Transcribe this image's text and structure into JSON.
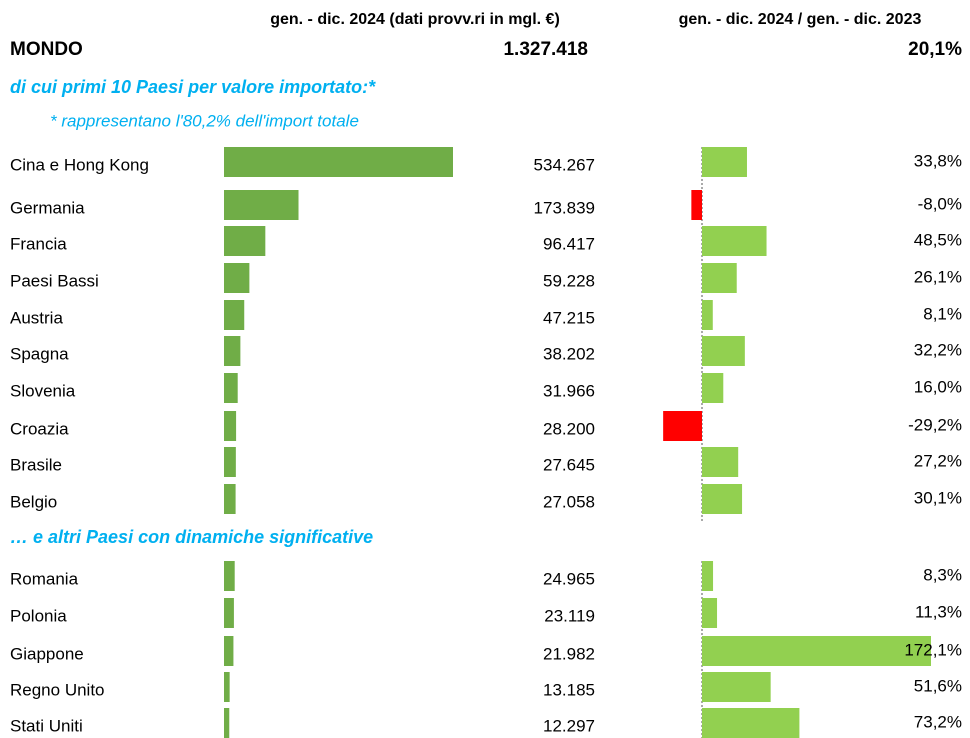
{
  "header": {
    "col_value": "gen. - dic. 2024 (dati provv.ri in mgl. €)",
    "col_change": "gen. - dic. 2024 / gen. - dic. 2023"
  },
  "world": {
    "name": "MONDO",
    "value": 1327418,
    "value_label": "1.327.418",
    "change": 20.1,
    "change_label": "20,1%"
  },
  "colors": {
    "value_bar": "#70ad47",
    "change_positive": "#92d050",
    "change_negative": "#ff0000",
    "negative_text": "#ff0000"
  },
  "sections": [
    {
      "title": "di cui primi 10 Paesi per valore importato:*",
      "note": "* rappresentano l'80,2% dell'import totale",
      "rows": [
        {
          "name": "Cina e Hong Kong",
          "value": 534267,
          "value_label": "534.267",
          "change": 33.8,
          "change_label": "33,8%"
        },
        {
          "name": "Germania",
          "value": 173839,
          "value_label": "173.839",
          "change": -8.0,
          "change_label": "-8,0%"
        },
        {
          "name": "Francia",
          "value": 96417,
          "value_label": "96.417",
          "change": 48.5,
          "change_label": "48,5%"
        },
        {
          "name": "Paesi Bassi",
          "value": 59228,
          "value_label": "59.228",
          "change": 26.1,
          "change_label": "26,1%"
        },
        {
          "name": "Austria",
          "value": 47215,
          "value_label": "47.215",
          "change": 8.1,
          "change_label": "8,1%"
        },
        {
          "name": "Spagna",
          "value": 38202,
          "value_label": "38.202",
          "change": 32.2,
          "change_label": "32,2%"
        },
        {
          "name": "Slovenia",
          "value": 31966,
          "value_label": "31.966",
          "change": 16.0,
          "change_label": "16,0%"
        },
        {
          "name": "Croazia",
          "value": 28200,
          "value_label": "28.200",
          "change": -29.2,
          "change_label": "-29,2%"
        },
        {
          "name": "Brasile",
          "value": 27645,
          "value_label": "27.645",
          "change": 27.2,
          "change_label": "27,2%"
        },
        {
          "name": "Belgio",
          "value": 27058,
          "value_label": "27.058",
          "change": 30.1,
          "change_label": "30,1%"
        }
      ]
    },
    {
      "title": "… e altri Paesi con dinamiche significative",
      "rows": [
        {
          "name": "Romania",
          "value": 24965,
          "value_label": "24.965",
          "change": 8.3,
          "change_label": "8,3%"
        },
        {
          "name": "Polonia",
          "value": 23119,
          "value_label": "23.119",
          "change": 11.3,
          "change_label": "11,3%"
        },
        {
          "name": "Giappone",
          "value": 21982,
          "value_label": "21.982",
          "change": 172.1,
          "change_label": "172,1%"
        },
        {
          "name": "Regno Unito",
          "value": 13185,
          "value_label": "13.185",
          "change": 51.6,
          "change_label": "51,6%"
        },
        {
          "name": "Stati Uniti",
          "value": 12297,
          "value_label": "12.297",
          "change": 73.2,
          "change_label": "73,2%"
        }
      ]
    }
  ]
}
